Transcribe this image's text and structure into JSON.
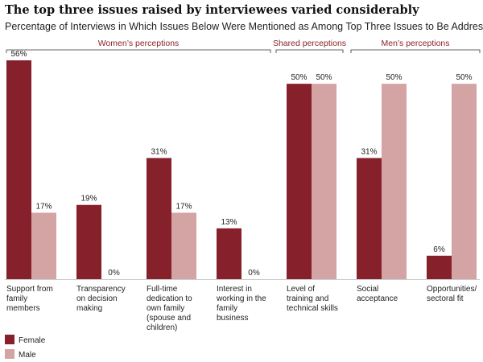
{
  "chart_data": {
    "type": "bar",
    "title": "The top three issues raised by interviewees varied considerably",
    "subtitle": "Percentage of Interviews in Which Issues Below Were Mentioned as Among Top Three Issues to Be Addressed",
    "groups": [
      {
        "label": "Women’s perceptions",
        "categories": [
          0,
          1,
          2,
          3
        ]
      },
      {
        "label": "Shared perceptions",
        "categories": [
          4
        ]
      },
      {
        "label": "Men’s perceptions",
        "categories": [
          5,
          6
        ]
      }
    ],
    "categories": [
      [
        "Support from",
        "family",
        "members"
      ],
      [
        "Transparency",
        "on decision",
        "making"
      ],
      [
        "Full-time",
        "dedication to",
        "own family",
        "(spouse and",
        "children)"
      ],
      [
        "Interest in",
        "working in the",
        "family",
        "business"
      ],
      [
        "Level of",
        "training and",
        "technical skills"
      ],
      [
        "Social",
        "acceptance"
      ],
      [
        "Opportunities/",
        "sectoral fit"
      ]
    ],
    "series": [
      {
        "name": "Female",
        "color": "#86202a",
        "values": [
          56,
          19,
          31,
          13,
          50,
          31,
          6
        ],
        "labels": [
          "56%",
          "19%",
          "31%",
          "13%",
          "50%",
          "31%",
          "6%"
        ]
      },
      {
        "name": "Male",
        "color": "#d4a3a3",
        "values": [
          17,
          0,
          17,
          0,
          50,
          50,
          50
        ],
        "labels": [
          "17%",
          "0%",
          "17%",
          "0%",
          "50%",
          "50%",
          "50%"
        ]
      }
    ],
    "ylim": [
      0,
      56
    ],
    "grid": false,
    "legend_position": "bottom-left"
  }
}
